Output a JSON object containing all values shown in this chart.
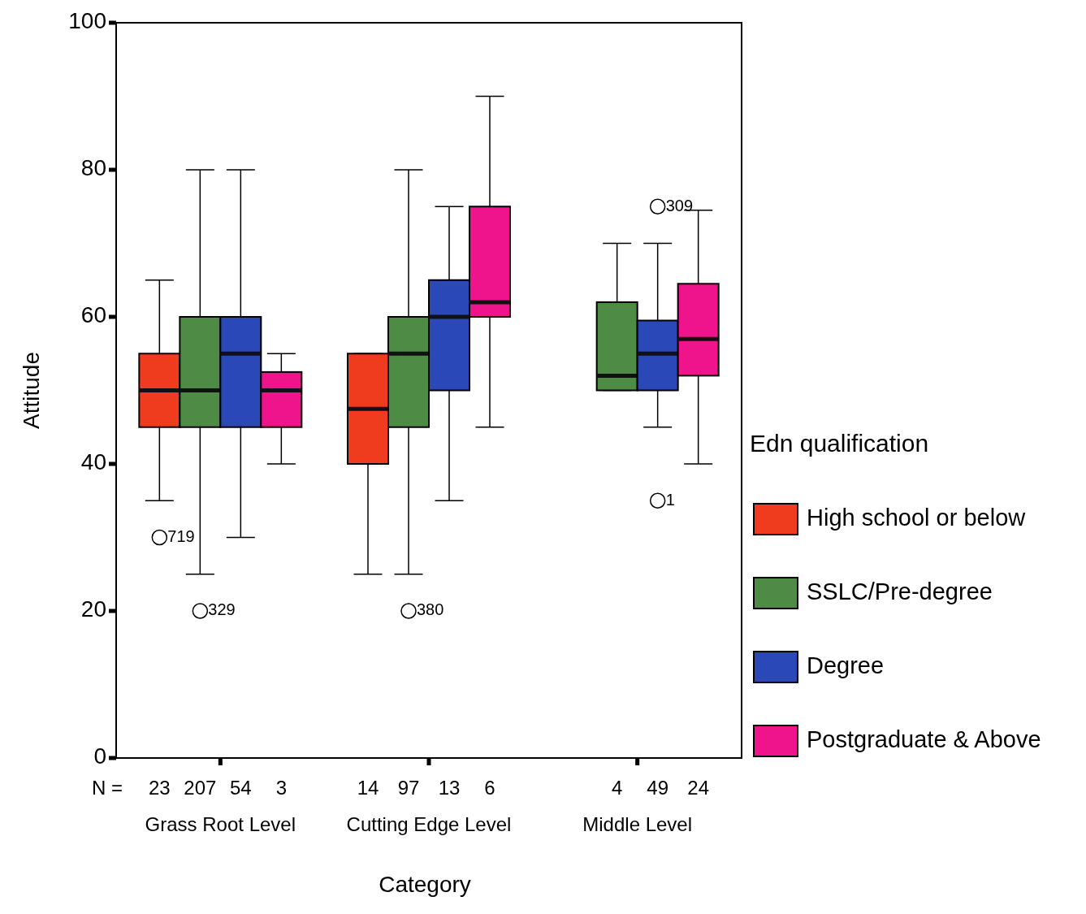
{
  "chart_data": {
    "type": "box",
    "xlabel": "Category",
    "ylabel": "Attitude",
    "legend_title": "Edn qualification",
    "legend": "right",
    "grid": false,
    "categories": [
      "Grass Root Level",
      "Cutting Edge Level",
      "Middle Level"
    ],
    "ylim": [
      0,
      100
    ],
    "yticks": [
      0,
      20,
      40,
      60,
      80,
      100
    ],
    "series": [
      {
        "name": "High school or below",
        "color": "#f03c1e",
        "value_labels": [
          "23",
          "14",
          null
        ],
        "boxes": [
          {
            "low": 35,
            "q1": 45,
            "median": 50,
            "q3": 55,
            "high": 65,
            "outliers": [
              30
            ]
          },
          {
            "low": 25,
            "q1": 40,
            "median": 47.5,
            "q3": 55,
            "high": 55
          },
          null
        ]
      },
      {
        "name": "SSLC/Pre-degree",
        "color": "#4e8c46",
        "value_labels": [
          "207",
          "97",
          "4"
        ],
        "boxes": [
          {
            "low": 25,
            "q1": 45,
            "median": 50,
            "q3": 60,
            "high": 80,
            "outliers": [
              20
            ]
          },
          {
            "low": 25,
            "q1": 45,
            "median": 55,
            "q3": 60,
            "high": 80,
            "outliers": [
              20
            ]
          },
          {
            "low": 50,
            "q1": 50,
            "median": 52,
            "q3": 62,
            "high": 70
          }
        ]
      },
      {
        "name": "Degree",
        "color": "#2a48b8",
        "value_labels": [
          "54",
          "13",
          "49"
        ],
        "boxes": [
          {
            "low": 30,
            "q1": 45,
            "median": 55,
            "q3": 60,
            "high": 80
          },
          {
            "low": 35,
            "q1": 50,
            "median": 60,
            "q3": 65,
            "high": 75
          },
          {
            "low": 45,
            "q1": 50,
            "median": 55,
            "q3": 59.5,
            "high": 70,
            "outliers": [
              75,
              35
            ]
          }
        ]
      },
      {
        "name": "Postgraduate & Above",
        "color": "#f0148c",
        "value_labels": [
          "3",
          "6",
          "24"
        ],
        "boxes": [
          {
            "low": 40,
            "q1": 45,
            "median": 50,
            "q3": 52.5,
            "high": 55
          },
          {
            "low": 45,
            "q1": 60,
            "median": 62,
            "q3": 75,
            "high": 90
          },
          {
            "low": 40,
            "q1": 52,
            "median": 57,
            "q3": 64.5,
            "high": 74.5
          }
        ]
      }
    ],
    "annotations": [
      "N =",
      "719",
      "329",
      "380",
      "309",
      "1"
    ]
  }
}
